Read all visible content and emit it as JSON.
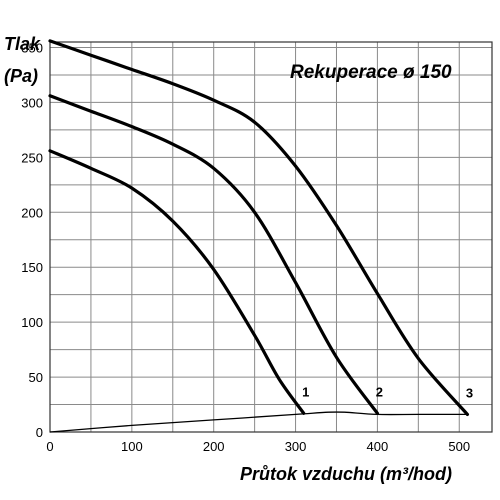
{
  "chart_data": {
    "type": "line",
    "title": "Rekuperace ø 150",
    "ylabel_line1": "Tlak",
    "ylabel_line2": "(Pa)",
    "xlabel": "Průtok vzduchu (m³/hod)",
    "xlim": [
      0,
      540
    ],
    "ylim": [
      0,
      355
    ],
    "x_ticks": [
      0,
      100,
      200,
      300,
      400,
      500
    ],
    "y_ticks": [
      0,
      50,
      100,
      150,
      200,
      250,
      300,
      350
    ],
    "grid": true,
    "series": [
      {
        "name": "1",
        "points": [
          [
            0,
            256
          ],
          [
            50,
            240
          ],
          [
            100,
            222
          ],
          [
            150,
            192
          ],
          [
            200,
            148
          ],
          [
            250,
            88
          ],
          [
            280,
            48
          ],
          [
            310,
            17
          ]
        ]
      },
      {
        "name": "2",
        "points": [
          [
            0,
            306
          ],
          [
            50,
            292
          ],
          [
            100,
            278
          ],
          [
            150,
            262
          ],
          [
            200,
            240
          ],
          [
            250,
            200
          ],
          [
            300,
            136
          ],
          [
            350,
            68
          ],
          [
            400,
            17
          ]
        ]
      },
      {
        "name": "3",
        "points": [
          [
            0,
            356
          ],
          [
            50,
            343
          ],
          [
            100,
            330
          ],
          [
            150,
            317
          ],
          [
            200,
            302
          ],
          [
            250,
            282
          ],
          [
            300,
            242
          ],
          [
            350,
            188
          ],
          [
            400,
            126
          ],
          [
            450,
            67
          ],
          [
            510,
            16
          ]
        ]
      },
      {
        "name": "",
        "role": "system",
        "points": [
          [
            0,
            0
          ],
          [
            100,
            6
          ],
          [
            200,
            11
          ],
          [
            300,
            16
          ],
          [
            340,
            18
          ],
          [
            360,
            18
          ],
          [
            400,
            16
          ],
          [
            450,
            16
          ],
          [
            510,
            16
          ]
        ]
      }
    ]
  }
}
